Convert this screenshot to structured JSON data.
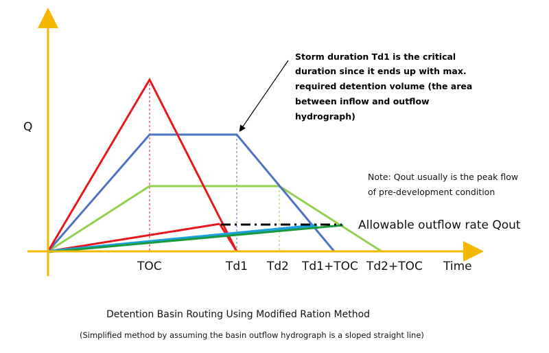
{
  "axes": {
    "y_label": "Q",
    "x_label": "Time",
    "ticks": [
      "TOC",
      "Td1",
      "Td2",
      "Td1+TOC",
      "Td2+TOC"
    ]
  },
  "annotation": {
    "lines": [
      "Storm duration Td1 is the critical",
      "duration since it ends up with max.",
      "required detention volume (the area",
      "between inflow and outflow",
      "hydrograph)"
    ]
  },
  "note": {
    "lines": [
      "Note: Qout usually is the peak flow",
      "of pre-development condition"
    ]
  },
  "outflow_label": "Allowable outflow rate Qout",
  "caption": {
    "title": "Detention Basin Routing Using Modified Ration Method",
    "subtitle": "(Simplified method by assuming the basin outflow hydrograph is a sloped straight line)"
  },
  "colors": {
    "axis": "#F5B800",
    "red": "#E8171E",
    "blue": "#4C72C4",
    "green": "#92D050",
    "dark_green": "#1A9A3A",
    "cyan": "#1CA0DC"
  }
}
